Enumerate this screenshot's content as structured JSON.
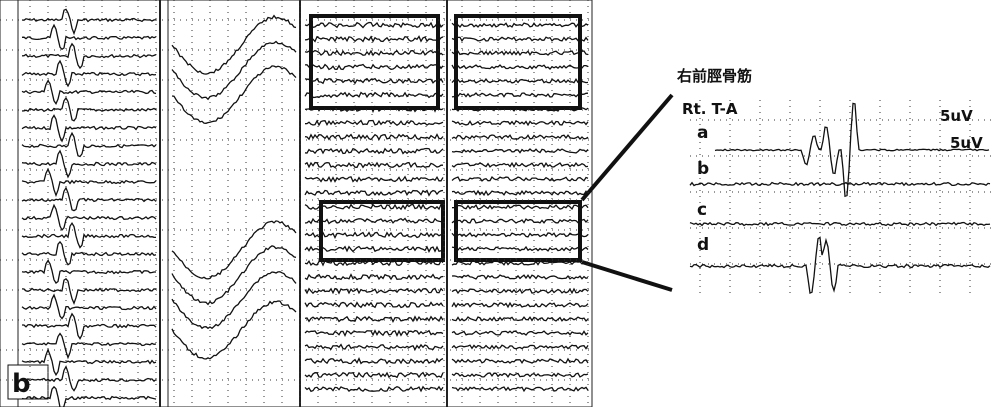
{
  "figure": {
    "left_label": "b",
    "zoom": {
      "muscle": "右前脛骨筋",
      "side": "Rt. T-A",
      "traces": [
        "a",
        "b",
        "c",
        "d"
      ],
      "scales": [
        "5uV",
        "5uV"
      ]
    }
  }
}
